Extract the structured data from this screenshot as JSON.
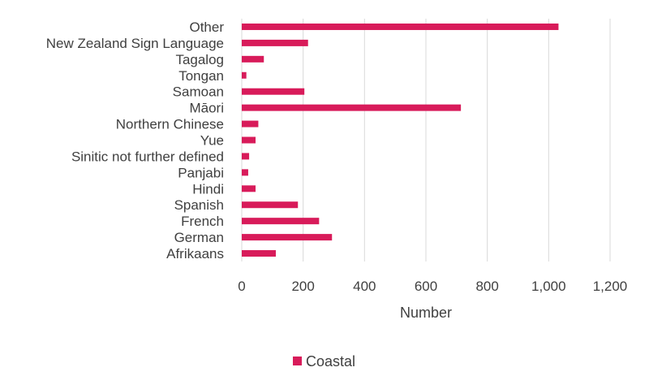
{
  "chart_data": {
    "type": "bar",
    "orientation": "horizontal",
    "categories": [
      "Other",
      "New Zealand Sign Language",
      "Tagalog",
      "Tongan",
      "Samoan",
      "Māori",
      "Northern Chinese",
      "Yue",
      "Sinitic not further defined",
      "Panjabi",
      "Hindi",
      "Spanish",
      "French",
      "German",
      "Afrikaans"
    ],
    "series": [
      {
        "name": "Coastal",
        "color": "#d81b5a",
        "values": [
          1032,
          216,
          72,
          15,
          204,
          714,
          54,
          45,
          24,
          21,
          45,
          183,
          252,
          294,
          111
        ]
      }
    ],
    "xlabel": "Number",
    "xlim": [
      0,
      1200
    ],
    "xticks": [
      0,
      200,
      400,
      600,
      800,
      1000,
      1200
    ],
    "xtick_labels": [
      "0",
      "200",
      "400",
      "600",
      "800",
      "1,000",
      "1,200"
    ],
    "grid": "vertical",
    "legend_position": "bottom"
  }
}
